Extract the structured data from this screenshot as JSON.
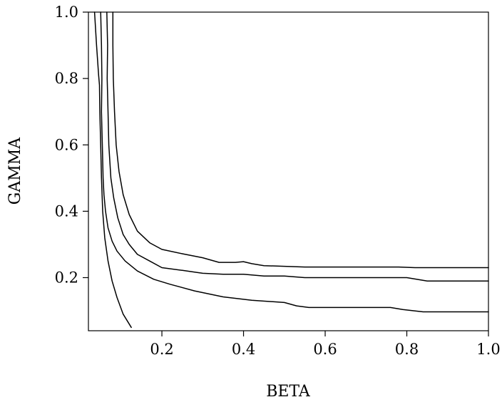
{
  "chart_data": {
    "type": "line",
    "title": "",
    "xlabel": "BETA",
    "ylabel": "GAMMA",
    "xlim": [
      0.02,
      1.0
    ],
    "ylim": [
      0.04,
      1.0
    ],
    "x_ticks": [
      0.2,
      0.4,
      0.6,
      0.8,
      1.0
    ],
    "x_tick_labels": [
      "0.2",
      "0.4",
      "0.6",
      "0.8",
      "1.0"
    ],
    "y_ticks": [
      0.2,
      0.4,
      0.6,
      0.8,
      1.0
    ],
    "y_tick_labels": [
      "0.2",
      "0.4",
      "0.6",
      "0.8",
      "1.0"
    ],
    "grid": false,
    "legend": "none",
    "series": [
      {
        "x": [
          0.035,
          0.04,
          0.045,
          0.047,
          0.048,
          0.05,
          0.052,
          0.055,
          0.06,
          0.068,
          0.078,
          0.09,
          0.105,
          0.125
        ],
        "y": [
          1.0,
          0.9,
          0.81,
          0.78,
          0.7,
          0.6,
          0.5,
          0.4,
          0.32,
          0.25,
          0.19,
          0.14,
          0.09,
          0.05
        ]
      },
      {
        "x": [
          0.05,
          0.052,
          0.053,
          0.052,
          0.054,
          0.056,
          0.058,
          0.062,
          0.068,
          0.078,
          0.09,
          0.11,
          0.14,
          0.18,
          0.22,
          0.28,
          0.35,
          0.42,
          0.5,
          0.53,
          0.56,
          0.65,
          0.76,
          0.79,
          0.84,
          1.0
        ],
        "y": [
          1.0,
          0.9,
          0.8,
          0.7,
          0.6,
          0.5,
          0.45,
          0.4,
          0.35,
          0.31,
          0.28,
          0.25,
          0.22,
          0.195,
          0.18,
          0.16,
          0.142,
          0.132,
          0.125,
          0.115,
          0.11,
          0.11,
          0.11,
          0.104,
          0.097,
          0.097
        ]
      },
      {
        "x": [
          0.065,
          0.067,
          0.066,
          0.068,
          0.07,
          0.075,
          0.082,
          0.092,
          0.105,
          0.12,
          0.14,
          0.17,
          0.2,
          0.25,
          0.3,
          0.35,
          0.4,
          0.45,
          0.5,
          0.55,
          0.6,
          0.7,
          0.8,
          0.85,
          1.0
        ],
        "y": [
          1.0,
          0.9,
          0.8,
          0.7,
          0.6,
          0.5,
          0.44,
          0.38,
          0.33,
          0.3,
          0.27,
          0.25,
          0.23,
          0.222,
          0.213,
          0.21,
          0.21,
          0.205,
          0.205,
          0.2,
          0.2,
          0.2,
          0.2,
          0.19,
          0.19
        ]
      },
      {
        "x": [
          0.08,
          0.08,
          0.081,
          0.084,
          0.088,
          0.095,
          0.105,
          0.12,
          0.14,
          0.17,
          0.2,
          0.25,
          0.3,
          0.34,
          0.38,
          0.4,
          0.42,
          0.45,
          0.55,
          0.78,
          0.82,
          1.0
        ],
        "y": [
          1.0,
          0.9,
          0.8,
          0.7,
          0.6,
          0.52,
          0.45,
          0.39,
          0.34,
          0.305,
          0.285,
          0.272,
          0.26,
          0.246,
          0.246,
          0.248,
          0.242,
          0.236,
          0.232,
          0.232,
          0.23,
          0.23
        ]
      }
    ]
  }
}
